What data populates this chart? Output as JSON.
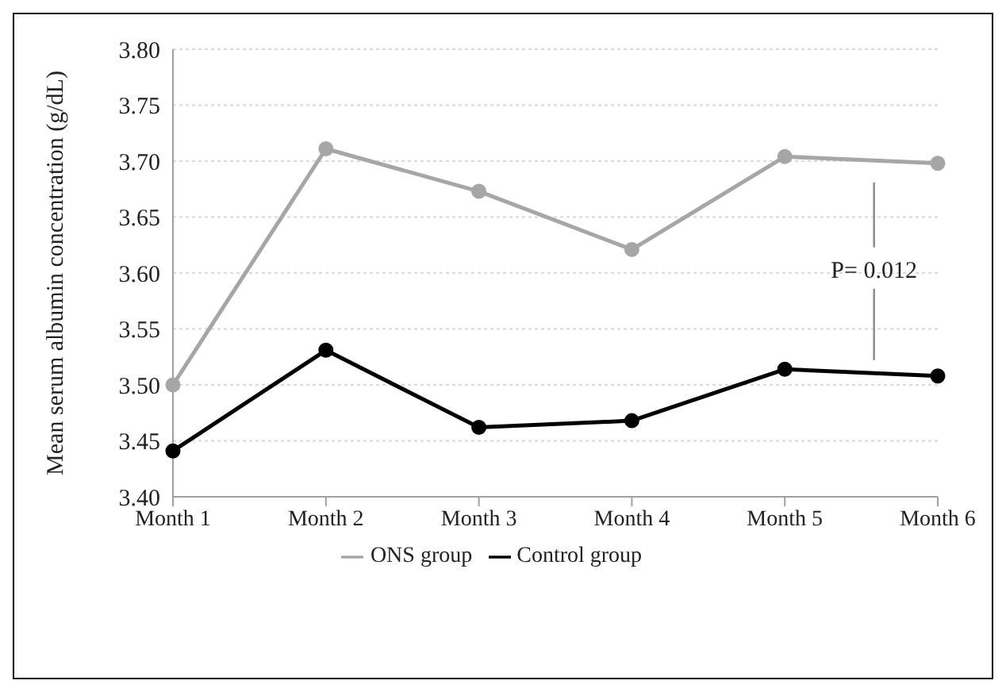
{
  "chart_data": {
    "type": "line",
    "ylabel": "Mean serum albumin concentration (g/dL)",
    "categories": [
      "Month 1",
      "Month 2",
      "Month 3",
      "Month 4",
      "Month 5",
      "Month 6"
    ],
    "series": [
      {
        "name": "ONS group",
        "color": "#a6a6a6",
        "values": [
          3.5,
          3.711,
          3.673,
          3.621,
          3.704,
          3.698
        ]
      },
      {
        "name": "Control group",
        "color": "#000000",
        "values": [
          3.441,
          3.531,
          3.462,
          3.468,
          3.514,
          3.508
        ]
      }
    ],
    "ylim": [
      3.4,
      3.8
    ],
    "yticks": [
      {
        "value": 3.4,
        "label": "3.40"
      },
      3.45,
      {
        "value": 3.5,
        "label": "3.50"
      },
      3.55,
      {
        "value": 3.6,
        "label": "3.60"
      },
      3.65,
      {
        "value": 3.7,
        "label": "3.70"
      },
      3.75,
      {
        "value": 3.8,
        "label": "3.80"
      }
    ],
    "grid": "y",
    "legend": "bottom",
    "marker": "circle",
    "line_style": "solid",
    "annotations": [
      "P= 0.012"
    ]
  }
}
